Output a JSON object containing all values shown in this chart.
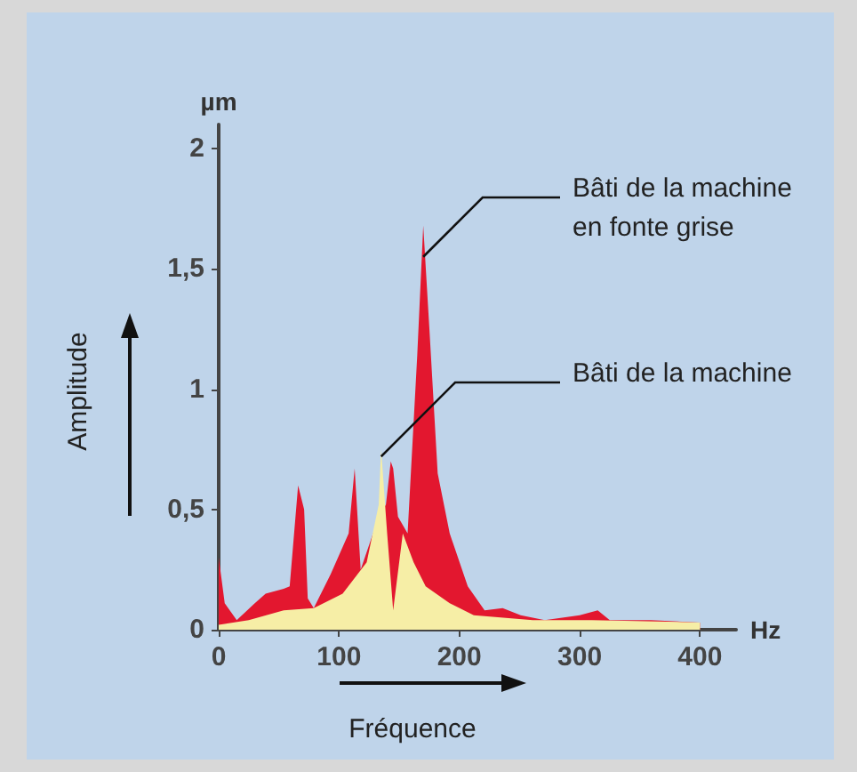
{
  "chart_data": {
    "type": "area",
    "xlabel": "Fréquence",
    "ylabel": "Amplitude",
    "xlim": [
      0,
      430
    ],
    "xticks": [
      0,
      100,
      200,
      300,
      400
    ],
    "ylim": [
      0,
      2.1
    ],
    "yticks": [
      0,
      {
        "value": 0.5,
        "label": "0,5"
      },
      1,
      {
        "value": 1.5,
        "label": "1,5"
      },
      2
    ],
    "grid": false,
    "series": [
      {
        "color": "#e3172f",
        "x": [
          0,
          5,
          15,
          30,
          39,
          54,
          59,
          66,
          71,
          74,
          79,
          93,
          108,
          113,
          118,
          123,
          133,
          139,
          143,
          145,
          149,
          157,
          165,
          170,
          175,
          182,
          192,
          207,
          221,
          236,
          251,
          271,
          300,
          315,
          325,
          359,
          400
        ],
        "values": [
          0.3,
          0.11,
          0.04,
          0.11,
          0.15,
          0.17,
          0.18,
          0.6,
          0.5,
          0.13,
          0.09,
          0.23,
          0.4,
          0.67,
          0.25,
          null,
          0.47,
          0.52,
          0.7,
          0.67,
          0.47,
          0.4,
          1.14,
          1.68,
          1.26,
          0.65,
          0.4,
          0.18,
          0.08,
          0.09,
          0.06,
          0.04,
          0.06,
          0.08,
          0.04,
          0.04,
          0.03
        ]
      },
      {
        "color": "#f6eea6",
        "x": [
          0,
          25,
          54,
          79,
          103,
          123,
          133,
          135,
          140,
          145,
          153,
          162,
          172,
          192,
          212,
          261,
          310,
          400
        ],
        "values": [
          0.02,
          0.04,
          0.08,
          0.09,
          0.15,
          0.28,
          0.52,
          0.75,
          0.4,
          0.08,
          0.4,
          0.28,
          0.18,
          0.11,
          0.06,
          0.04,
          0.04,
          0.03
        ]
      }
    ],
    "annotations": [
      "µm",
      "Hz",
      {
        "text": "Bâti de la machine\nen fonte grise",
        "x": 170,
        "y": 1.55
      },
      {
        "text": "Bâti de la machine",
        "x": 135,
        "y": 0.72
      }
    ]
  }
}
